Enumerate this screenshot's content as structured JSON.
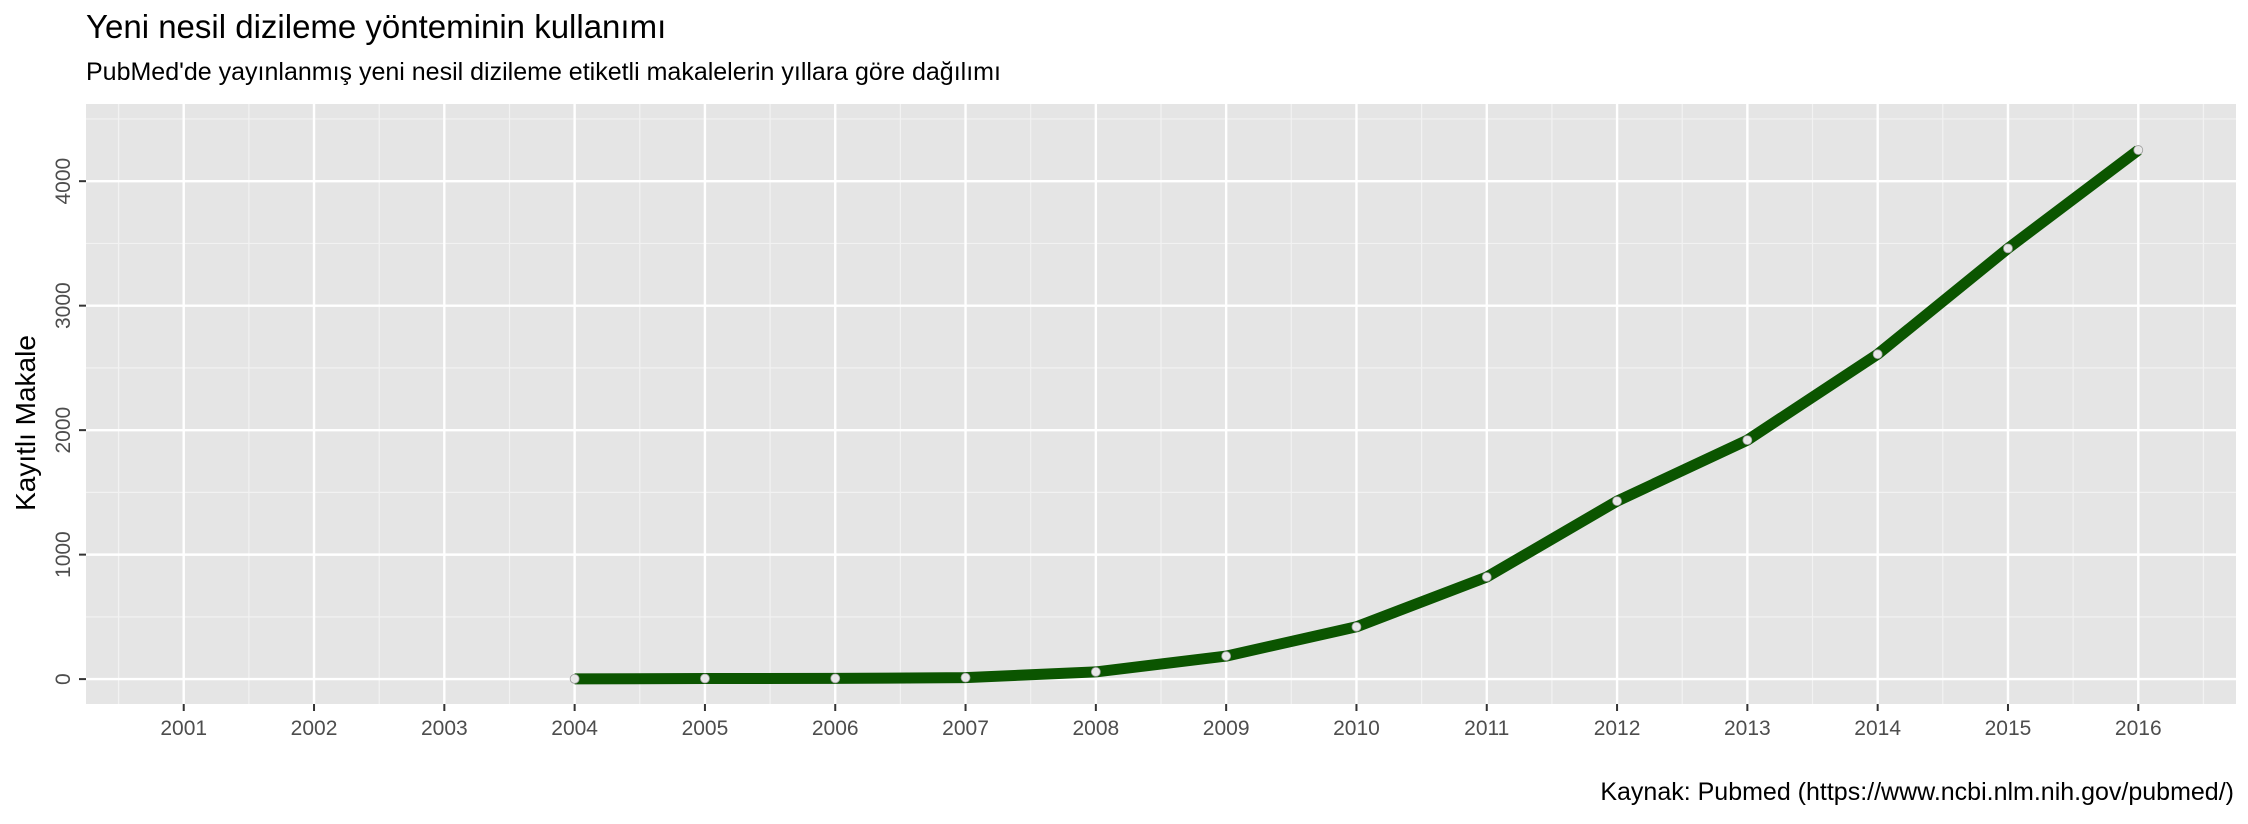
{
  "chart_data": {
    "type": "line",
    "title": "Yeni nesil dizileme yönteminin kullanımı",
    "subtitle": "PubMed'de yayınlanmış yeni nesil dizileme etiketli makalelerin yıllara göre dağılımı",
    "caption": "Kaynak: Pubmed (https://www.ncbi.nlm.nih.gov/pubmed/)",
    "xlabel": "",
    "ylabel": "Kayıtlı Makale",
    "x_ticks": [
      "2001",
      "2002",
      "2003",
      "2004",
      "2005",
      "2006",
      "2007",
      "2008",
      "2009",
      "2010",
      "2011",
      "2012",
      "2013",
      "2014",
      "2015",
      "2016"
    ],
    "y_ticks": [
      "0",
      "1000",
      "2000",
      "3000",
      "4000"
    ],
    "xlim": [
      2000.25,
      2016.75
    ],
    "ylim": [
      -200,
      4620
    ],
    "grid": true,
    "series": [
      {
        "color": "#0b5500",
        "x": [
          2004,
          2005,
          2006,
          2007,
          2008,
          2009,
          2010,
          2011,
          2012,
          2013,
          2014,
          2015,
          2016
        ],
        "y": [
          2,
          5,
          6,
          12,
          58,
          185,
          420,
          820,
          1430,
          1920,
          2610,
          3460,
          4250
        ]
      }
    ],
    "colors": {
      "panel": "#e5e5e5",
      "grid_major": "#ffffff",
      "grid_minor": "#f2f2f2",
      "tick_text": "#4d4d4d",
      "point_fill": "#e8e8e8"
    }
  }
}
